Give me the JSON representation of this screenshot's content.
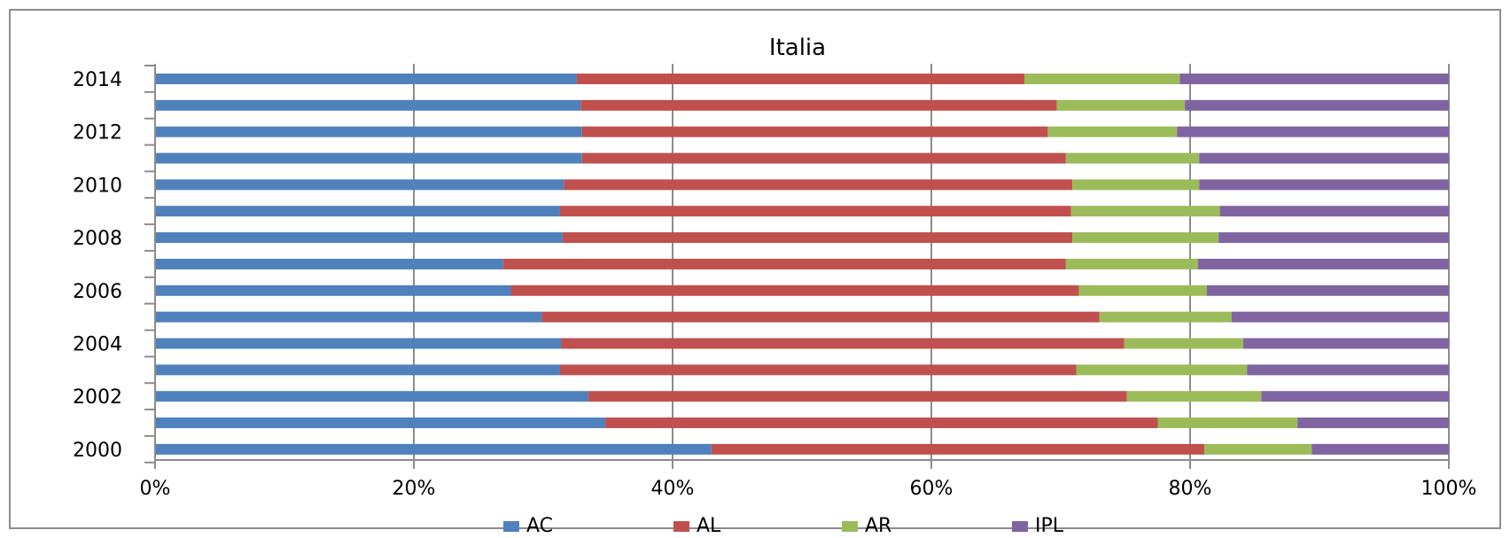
{
  "chart_data": {
    "type": "bar",
    "orientation": "horizontal",
    "stacked": "percent",
    "title": "Italia",
    "categories": [
      "2000",
      "2001",
      "2002",
      "2003",
      "2004",
      "2005",
      "2006",
      "2007",
      "2008",
      "2009",
      "2010",
      "2011",
      "2012",
      "2013",
      "2014"
    ],
    "y_tick_labels": [
      "2000",
      "2002",
      "2004",
      "2006",
      "2008",
      "2010",
      "2012",
      "2014"
    ],
    "x_tick_labels": [
      "0%",
      "20%",
      "40%",
      "60%",
      "80%",
      "100%"
    ],
    "xlim": [
      0,
      100
    ],
    "grid": true,
    "legend_position": "bottom",
    "series": [
      {
        "name": "AC",
        "color": "#4f81bd",
        "values": [
          43.0,
          34.8,
          33.5,
          31.3,
          31.4,
          29.9,
          27.5,
          26.9,
          31.5,
          31.3,
          31.6,
          33.0,
          33.0,
          32.9,
          32.6
        ]
      },
      {
        "name": "AL",
        "color": "#c0504d",
        "values": [
          38.1,
          42.7,
          41.6,
          39.9,
          43.5,
          43.1,
          43.9,
          43.5,
          39.4,
          39.5,
          39.3,
          37.4,
          36.0,
          36.8,
          34.6
        ]
      },
      {
        "name": "AR",
        "color": "#9bbb59",
        "values": [
          8.3,
          10.8,
          10.4,
          13.2,
          9.2,
          10.2,
          9.9,
          10.2,
          11.3,
          11.5,
          9.8,
          10.3,
          10.0,
          9.9,
          12.0
        ]
      },
      {
        "name": "IPL",
        "color": "#8064a2",
        "values": [
          10.6,
          11.7,
          14.5,
          15.6,
          15.9,
          16.8,
          18.7,
          19.4,
          17.8,
          17.7,
          19.3,
          19.3,
          21.0,
          20.4,
          20.8
        ]
      }
    ]
  }
}
